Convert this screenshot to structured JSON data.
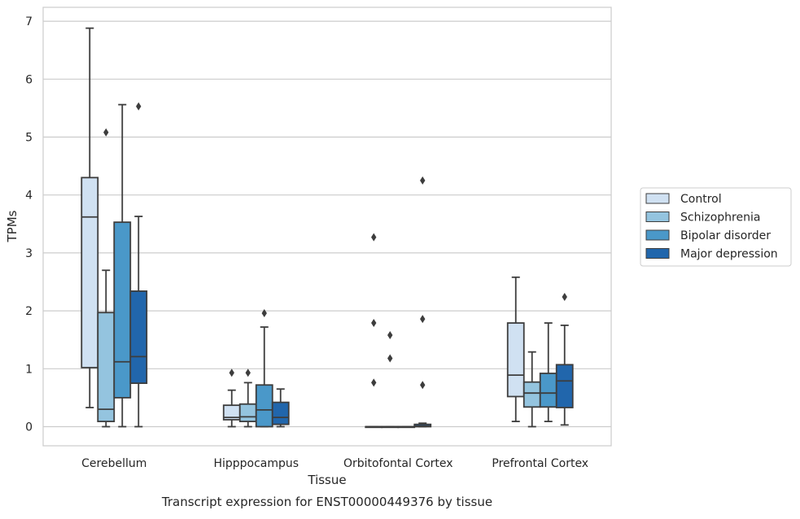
{
  "chart_data": {
    "type": "box",
    "caption": "Transcript expression for ENST00000449376 by tissue",
    "xlabel": "Tissue",
    "ylabel": "TPMs",
    "ylim": [
      -0.33,
      7.24
    ],
    "yticks": [
      0,
      1,
      2,
      3,
      4,
      5,
      6,
      7
    ],
    "grid": true,
    "legend_position": "right",
    "categories": [
      "Cerebellum",
      "Hipppocampus",
      "Orbitofontal Cortex",
      "Prefrontal Cortex"
    ],
    "series": [
      {
        "name": "Control",
        "color": "#d0e1f2",
        "boxes": [
          {
            "whislo": 0.33,
            "q1": 1.02,
            "med": 3.62,
            "q3": 4.3,
            "whishi": 6.88,
            "fliers": []
          },
          {
            "whislo": 0.0,
            "q1": 0.12,
            "med": 0.16,
            "q3": 0.37,
            "whishi": 0.63,
            "fliers": [
              0.93
            ]
          },
          {
            "whislo": 0.0,
            "q1": 0.0,
            "med": 0.0,
            "q3": 0.0,
            "whishi": 0.0,
            "fliers": [
              3.27,
              1.79,
              0.76
            ]
          },
          {
            "whislo": 0.09,
            "q1": 0.52,
            "med": 0.89,
            "q3": 1.79,
            "whishi": 2.58,
            "fliers": []
          }
        ]
      },
      {
        "name": "Schizophrenia",
        "color": "#94c4df",
        "boxes": [
          {
            "whislo": 0.0,
            "q1": 0.09,
            "med": 0.3,
            "q3": 1.97,
            "whishi": 2.7,
            "fliers": [
              5.08
            ]
          },
          {
            "whislo": 0.0,
            "q1": 0.09,
            "med": 0.17,
            "q3": 0.39,
            "whishi": 0.76,
            "fliers": [
              0.93
            ]
          },
          {
            "whislo": 0.0,
            "q1": 0.0,
            "med": 0.0,
            "q3": 0.0,
            "whishi": 0.0,
            "fliers": [
              1.58,
              1.18
            ]
          },
          {
            "whislo": 0.0,
            "q1": 0.34,
            "med": 0.58,
            "q3": 0.77,
            "whishi": 1.29,
            "fliers": []
          }
        ]
      },
      {
        "name": "Bipolar disorder",
        "color": "#4a98c9",
        "boxes": [
          {
            "whislo": 0.0,
            "q1": 0.5,
            "med": 1.12,
            "q3": 3.53,
            "whishi": 5.56,
            "fliers": []
          },
          {
            "whislo": 0.0,
            "q1": 0.0,
            "med": 0.29,
            "q3": 0.72,
            "whishi": 1.72,
            "fliers": [
              1.96
            ]
          },
          {
            "whislo": 0.0,
            "q1": 0.0,
            "med": 0.0,
            "q3": 0.0,
            "whishi": 0.0,
            "fliers": []
          },
          {
            "whislo": 0.09,
            "q1": 0.34,
            "med": 0.58,
            "q3": 0.92,
            "whishi": 1.79,
            "fliers": []
          }
        ]
      },
      {
        "name": "Major depression",
        "color": "#2166ac",
        "boxes": [
          {
            "whislo": 0.0,
            "q1": 0.75,
            "med": 1.21,
            "q3": 2.34,
            "whishi": 3.63,
            "fliers": [
              5.53
            ]
          },
          {
            "whislo": 0.0,
            "q1": 0.04,
            "med": 0.16,
            "q3": 0.42,
            "whishi": 0.65,
            "fliers": []
          },
          {
            "whislo": 0.0,
            "q1": 0.0,
            "med": 0.01,
            "q3": 0.04,
            "whishi": 0.06,
            "fliers": [
              4.25,
              1.86,
              0.72
            ]
          },
          {
            "whislo": 0.03,
            "q1": 0.33,
            "med": 0.79,
            "q3": 1.07,
            "whishi": 1.75,
            "fliers": [
              2.24
            ]
          }
        ]
      }
    ]
  }
}
